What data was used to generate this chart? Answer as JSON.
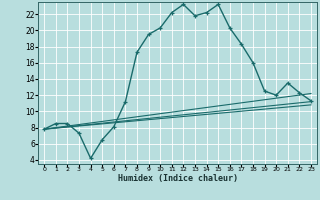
{
  "xlabel": "Humidex (Indice chaleur)",
  "background_color": "#b8dede",
  "grid_color": "#ffffff",
  "line_color": "#1a6b6b",
  "xlim": [
    -0.5,
    23.5
  ],
  "ylim": [
    3.5,
    23.5
  ],
  "xticks": [
    0,
    1,
    2,
    3,
    4,
    5,
    6,
    7,
    8,
    9,
    10,
    11,
    12,
    13,
    14,
    15,
    16,
    17,
    18,
    19,
    20,
    21,
    22,
    23
  ],
  "yticks": [
    4,
    6,
    8,
    10,
    12,
    14,
    16,
    18,
    20,
    22
  ],
  "main_line_x": [
    0,
    1,
    2,
    3,
    4,
    5,
    6,
    7,
    8,
    9,
    10,
    11,
    12,
    13,
    14,
    15,
    16,
    17,
    18,
    19,
    20,
    21,
    22,
    23
  ],
  "main_line_y": [
    7.8,
    8.5,
    8.5,
    7.3,
    4.2,
    6.5,
    8.1,
    11.2,
    17.3,
    19.5,
    20.3,
    22.2,
    23.2,
    21.8,
    22.2,
    23.2,
    20.3,
    18.3,
    16.0,
    12.5,
    12.0,
    13.5,
    12.3,
    11.3
  ],
  "lower_line1_x": [
    0,
    23
  ],
  "lower_line1_y": [
    7.8,
    12.2
  ],
  "lower_line2_x": [
    0,
    23
  ],
  "lower_line2_y": [
    7.8,
    11.2
  ],
  "lower_line3_x": [
    0,
    23
  ],
  "lower_line3_y": [
    7.8,
    10.8
  ]
}
